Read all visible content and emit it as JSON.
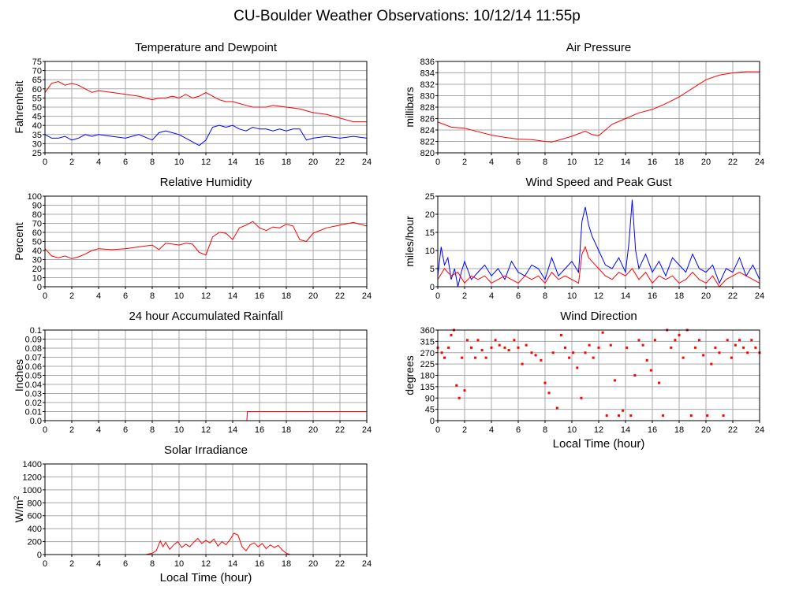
{
  "title": "CU-Boulder Weather Observations: 10/12/14 11:55p",
  "colors": {
    "red": "#ff0000",
    "blue": "#0000ff",
    "grid": "#a8a8a8",
    "frame": "#000000"
  },
  "xticks": [
    "0",
    "2",
    "4",
    "6",
    "8",
    "10",
    "12",
    "14",
    "16",
    "18",
    "20",
    "22",
    "24"
  ],
  "xlabel": "Local Time (hour)",
  "chart_data": [
    {
      "type": "line",
      "title": "Temperature and Dewpoint",
      "xlabel": "",
      "ylabel": "Fahrenheit",
      "xlim": [
        0,
        24
      ],
      "ylim": [
        25,
        75
      ],
      "yticks": [
        "25",
        "30",
        "35",
        "40",
        "45",
        "50",
        "55",
        "60",
        "65",
        "70",
        "75"
      ],
      "grid": true,
      "series": [
        {
          "color": "#ff0000",
          "x": [
            0,
            0.5,
            1,
            1.5,
            2,
            2.5,
            3,
            3.5,
            4,
            5,
            6,
            7,
            8,
            8.5,
            9,
            9.5,
            10,
            10.5,
            11,
            11.5,
            12,
            12.5,
            13,
            13.5,
            14,
            14.5,
            15,
            15.5,
            16,
            16.5,
            17,
            18,
            19,
            19.5,
            20,
            21,
            22,
            23,
            24
          ],
          "y": [
            58,
            63,
            64,
            62,
            63,
            62,
            60,
            58,
            59,
            58,
            57,
            56,
            54,
            55,
            55,
            56,
            55,
            57,
            55,
            56,
            58,
            56,
            54,
            53,
            53,
            52,
            51,
            50,
            50,
            50,
            51,
            50,
            49,
            48,
            47,
            46,
            44,
            42,
            42
          ]
        },
        {
          "color": "#0000ff",
          "x": [
            0,
            0.5,
            1,
            1.5,
            2,
            2.5,
            3,
            3.5,
            4,
            5,
            6,
            7,
            8,
            8.5,
            9,
            9.5,
            10,
            10.5,
            11,
            11.5,
            12,
            12.5,
            13,
            13.5,
            14,
            14.5,
            15,
            15.5,
            16,
            16.5,
            17,
            17.5,
            18,
            18.5,
            19,
            19.5,
            20,
            21,
            22,
            23,
            24
          ],
          "y": [
            35,
            33,
            33,
            34,
            32,
            33,
            35,
            34,
            35,
            34,
            33,
            35,
            32,
            36,
            37,
            36,
            35,
            33,
            31,
            29,
            32,
            39,
            40,
            39,
            40,
            38,
            37,
            39,
            38,
            38,
            37,
            38,
            37,
            38,
            38,
            32,
            33,
            34,
            33,
            34,
            33
          ]
        }
      ]
    },
    {
      "type": "line",
      "title": "Air Pressure",
      "xlabel": "",
      "ylabel": "millibars",
      "xlim": [
        0,
        24
      ],
      "ylim": [
        820,
        836
      ],
      "yticks": [
        "820",
        "822",
        "824",
        "826",
        "828",
        "830",
        "832",
        "834",
        "836"
      ],
      "grid": true,
      "series": [
        {
          "color": "#ff0000",
          "x": [
            0,
            1,
            2,
            3,
            4,
            5,
            6,
            7,
            8,
            8.5,
            9,
            10,
            11,
            11.5,
            12,
            12.5,
            13,
            14,
            15,
            16,
            17,
            18,
            19,
            20,
            21,
            22,
            23,
            24
          ],
          "y": [
            825.4,
            824.5,
            824.3,
            823.7,
            823.1,
            822.7,
            822.4,
            822.3,
            822,
            821.9,
            822.2,
            822.9,
            823.8,
            823.2,
            823,
            824,
            825,
            826,
            827,
            827.6,
            828.6,
            829.8,
            831.3,
            832.8,
            833.6,
            834,
            834.2,
            834.2
          ]
        }
      ]
    },
    {
      "type": "line",
      "title": "Relative Humidity",
      "xlabel": "",
      "ylabel": "Percent",
      "xlim": [
        0,
        24
      ],
      "ylim": [
        0,
        100
      ],
      "yticks": [
        "0",
        "10",
        "20",
        "30",
        "40",
        "50",
        "60",
        "70",
        "80",
        "90",
        "100"
      ],
      "grid": true,
      "series": [
        {
          "color": "#ff0000",
          "x": [
            0,
            0.5,
            1,
            1.5,
            2,
            2.5,
            3,
            3.5,
            4,
            5,
            6,
            7,
            8,
            8.5,
            9,
            9.5,
            10,
            10.5,
            11,
            11.5,
            12,
            12.5,
            13,
            13.5,
            14,
            14.5,
            15,
            15.5,
            16,
            16.5,
            17,
            17.5,
            18,
            18.5,
            19,
            19.5,
            20,
            21,
            22,
            23,
            24
          ],
          "y": [
            42,
            34,
            32,
            34,
            31,
            33,
            36,
            40,
            42,
            41,
            42,
            44,
            46,
            41,
            48,
            47,
            46,
            48,
            47,
            38,
            35,
            55,
            60,
            59,
            52,
            65,
            68,
            72,
            65,
            62,
            66,
            65,
            69,
            67,
            52,
            50,
            59,
            65,
            68,
            71,
            67
          ]
        }
      ]
    },
    {
      "type": "line",
      "title": "Wind Speed and Peak Gust",
      "xlabel": "",
      "ylabel": "miles/hour",
      "xlim": [
        0,
        24
      ],
      "ylim": [
        0,
        25
      ],
      "yticks": [
        "0",
        "5",
        "10",
        "15",
        "20",
        "25"
      ],
      "grid": true,
      "series": [
        {
          "color": "#0000ff",
          "x": [
            0,
            0.25,
            0.5,
            0.75,
            1,
            1.25,
            1.5,
            1.75,
            2,
            2.5,
            3,
            3.5,
            4,
            4.5,
            5,
            5.5,
            6,
            6.5,
            7,
            7.5,
            8,
            8.5,
            9,
            9.5,
            10,
            10.5,
            10.75,
            11,
            11.25,
            11.5,
            12,
            12.5,
            13,
            13.5,
            14,
            14.25,
            14.5,
            14.75,
            15,
            15.5,
            16,
            16.5,
            17,
            17.5,
            18,
            18.5,
            19,
            19.5,
            20,
            20.5,
            21,
            21.5,
            22,
            22.5,
            23,
            23.5,
            24
          ],
          "y": [
            3,
            11,
            6,
            8,
            2,
            5,
            0,
            4,
            7,
            2,
            4,
            6,
            3,
            5,
            2,
            7,
            4,
            3,
            6,
            5,
            2,
            8,
            3,
            5,
            7,
            4,
            18,
            22,
            17,
            14,
            10,
            6,
            5,
            8,
            4,
            12,
            24,
            10,
            5,
            9,
            4,
            7,
            3,
            8,
            6,
            4,
            9,
            5,
            4,
            6,
            1,
            5,
            4,
            8,
            3,
            6,
            2
          ]
        },
        {
          "color": "#ff0000",
          "x": [
            0,
            0.5,
            1,
            1.5,
            2,
            2.5,
            3,
            3.5,
            4,
            4.5,
            5,
            5.5,
            6,
            6.5,
            7,
            7.5,
            8,
            8.5,
            9,
            9.5,
            10,
            10.5,
            10.75,
            11,
            11.25,
            11.5,
            12,
            12.5,
            13,
            13.5,
            14,
            14.5,
            15,
            15.5,
            16,
            16.5,
            17,
            17.5,
            18,
            18.5,
            19,
            19.5,
            20,
            20.5,
            21,
            21.5,
            22,
            22.5,
            23,
            23.5,
            24
          ],
          "y": [
            2,
            5,
            3,
            4,
            1,
            3,
            2,
            3,
            1,
            2,
            3,
            2,
            1,
            3,
            2,
            3,
            1,
            4,
            2,
            3,
            2,
            1,
            9,
            11,
            8,
            7,
            5,
            3,
            2,
            4,
            3,
            5,
            2,
            4,
            1,
            3,
            2,
            3,
            1,
            2,
            4,
            2,
            1,
            3,
            0,
            2,
            3,
            4,
            3,
            2,
            1
          ]
        }
      ]
    },
    {
      "type": "line",
      "title": "24 hour Accumulated Rainfall",
      "xlabel": "",
      "ylabel": "Inches",
      "xlim": [
        0,
        24
      ],
      "ylim": [
        0,
        0.1
      ],
      "yticks": [
        "0.0",
        "0.01",
        "0.02",
        "0.03",
        "0.04",
        "0.05",
        "0.06",
        "0.07",
        "0.08",
        "0.09",
        "0.1"
      ],
      "grid": true,
      "series": [
        {
          "color": "#ff0000",
          "x": [
            0,
            15.05,
            15.1,
            24
          ],
          "y": [
            0,
            0,
            0.01,
            0.01
          ]
        }
      ]
    },
    {
      "type": "scatter",
      "title": "Wind Direction",
      "xlabel": "Local Time (hour)",
      "ylabel": "degrees",
      "xlim": [
        0,
        24
      ],
      "ylim": [
        0,
        360
      ],
      "yticks": [
        "0",
        "45",
        "90",
        "135",
        "180",
        "225",
        "270",
        "315",
        "360"
      ],
      "grid": true,
      "series": [
        {
          "color": "#ff0000",
          "x": [
            0,
            0.3,
            0.5,
            0.8,
            1.0,
            1.2,
            1.4,
            1.6,
            1.8,
            2.0,
            2.2,
            2.5,
            2.8,
            3.0,
            3.3,
            3.6,
            4.0,
            4.3,
            4.6,
            5.0,
            5.3,
            5.7,
            6.0,
            6.3,
            6.6,
            7.0,
            7.3,
            7.7,
            8.0,
            8.3,
            8.6,
            8.9,
            9.2,
            9.5,
            9.8,
            10.1,
            10.4,
            10.7,
            11.0,
            11.3,
            11.6,
            12.0,
            12.3,
            12.6,
            12.9,
            13.2,
            13.5,
            13.8,
            14.1,
            14.4,
            14.7,
            15.0,
            15.3,
            15.6,
            15.9,
            16.2,
            16.5,
            16.8,
            17.1,
            17.4,
            17.7,
            18.0,
            18.3,
            18.6,
            18.9,
            19.2,
            19.5,
            19.8,
            20.1,
            20.4,
            20.7,
            21.0,
            21.3,
            21.6,
            21.9,
            22.2,
            22.5,
            22.8,
            23.1,
            23.4,
            23.7,
            24.0
          ],
          "y": [
            290,
            270,
            250,
            290,
            340,
            360,
            140,
            90,
            250,
            120,
            320,
            290,
            250,
            320,
            280,
            250,
            290,
            320,
            300,
            290,
            280,
            320,
            290,
            225,
            300,
            270,
            260,
            240,
            150,
            110,
            270,
            50,
            340,
            290,
            250,
            270,
            210,
            90,
            270,
            300,
            250,
            290,
            350,
            20,
            300,
            160,
            20,
            40,
            290,
            20,
            180,
            320,
            300,
            240,
            200,
            320,
            150,
            20,
            360,
            290,
            320,
            340,
            250,
            360,
            20,
            290,
            320,
            260,
            20,
            225,
            290,
            270,
            20,
            320,
            250,
            300,
            320,
            290,
            270,
            320,
            290,
            270
          ]
        }
      ]
    },
    {
      "type": "line",
      "title": "Solar Irradiance",
      "xlabel": "Local Time (hour)",
      "ylabel": "W/m",
      "ylabel_sup": "2",
      "xlim": [
        0,
        24
      ],
      "ylim": [
        0,
        1400
      ],
      "yticks": [
        "0",
        "200",
        "400",
        "600",
        "800",
        "1000",
        "1200",
        "1400"
      ],
      "grid": true,
      "series": [
        {
          "color": "#ff0000",
          "x": [
            0,
            7.5,
            8,
            8.3,
            8.6,
            8.8,
            9,
            9.3,
            9.6,
            9.9,
            10.2,
            10.5,
            10.8,
            11.1,
            11.4,
            11.7,
            12,
            12.3,
            12.6,
            12.9,
            13.2,
            13.5,
            13.8,
            14.1,
            14.4,
            14.7,
            15,
            15.3,
            15.6,
            15.9,
            16.2,
            16.5,
            16.8,
            17.1,
            17.4,
            17.7,
            18,
            18.3,
            24
          ],
          "y": [
            0,
            0,
            20,
            60,
            210,
            120,
            190,
            80,
            150,
            200,
            110,
            160,
            120,
            190,
            250,
            170,
            220,
            180,
            240,
            130,
            200,
            150,
            230,
            330,
            300,
            120,
            60,
            150,
            180,
            120,
            170,
            90,
            150,
            110,
            140,
            70,
            20,
            0,
            0
          ]
        }
      ]
    }
  ]
}
